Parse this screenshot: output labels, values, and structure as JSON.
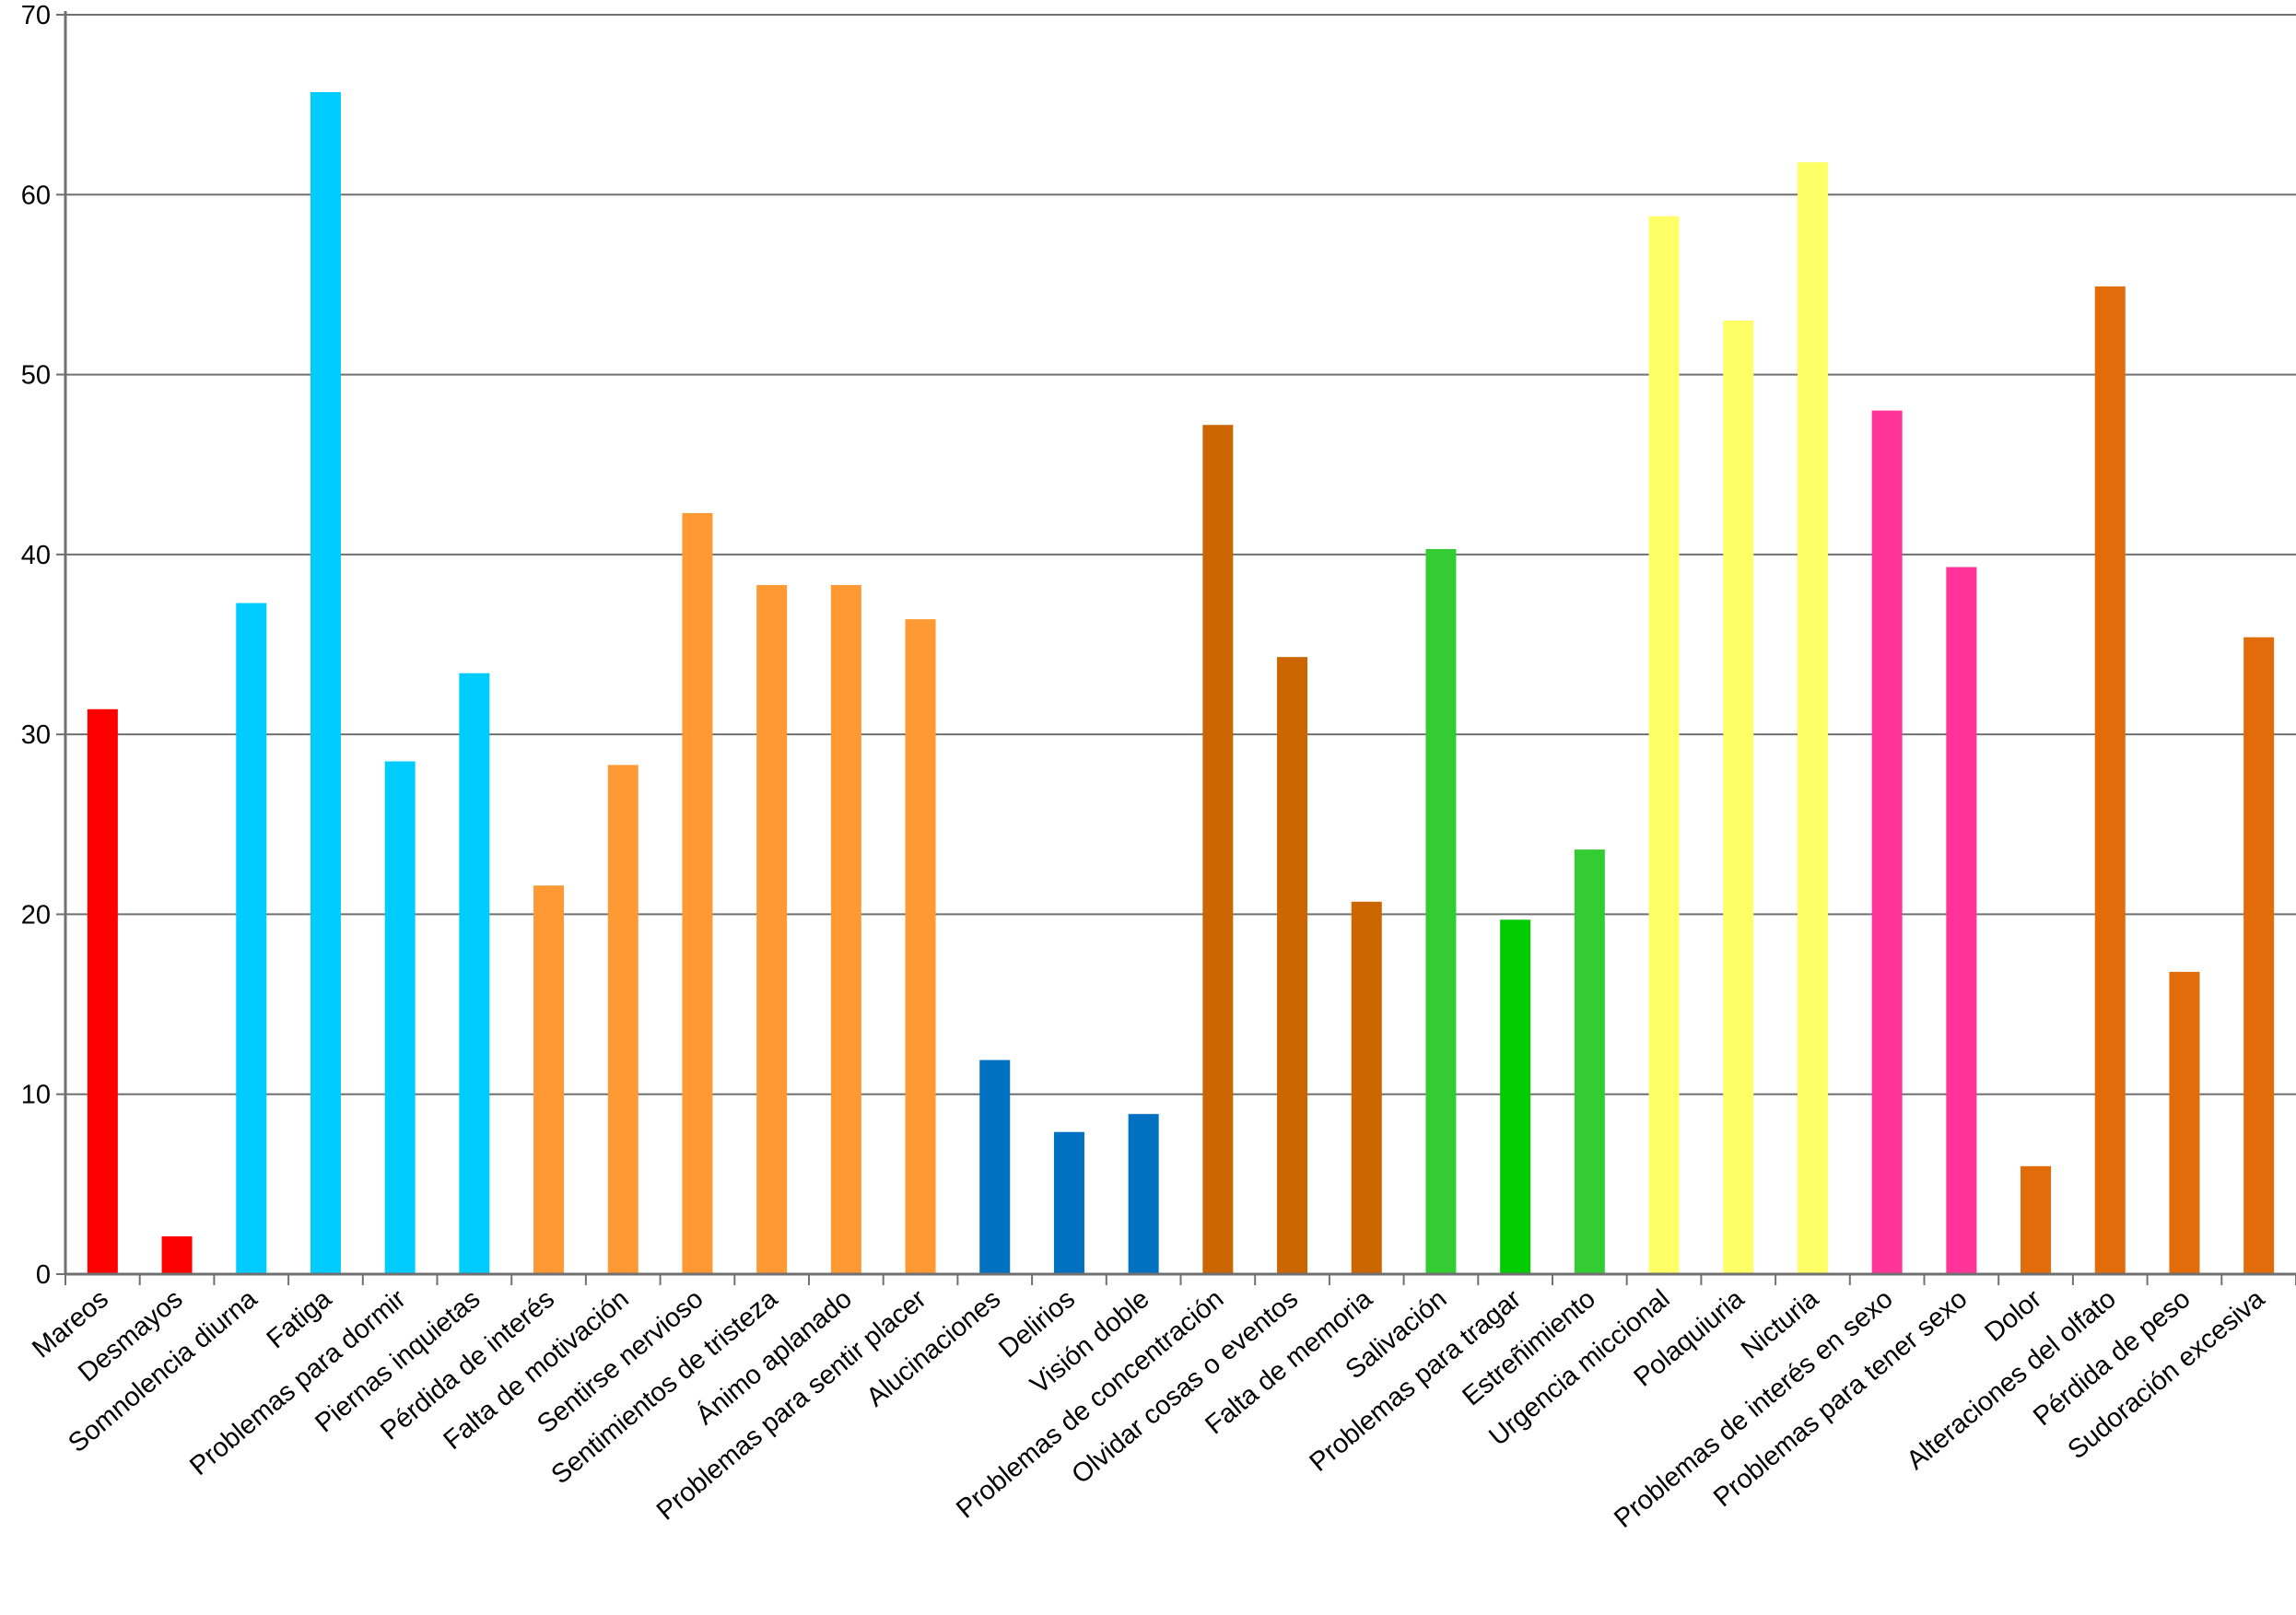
{
  "chart_data": {
    "type": "bar",
    "title": "",
    "xlabel": "",
    "ylabel": "",
    "ylim": [
      0,
      70
    ],
    "yticks": [
      0,
      10,
      20,
      30,
      40,
      50,
      60,
      70
    ],
    "grid": true,
    "legend": "none",
    "categories": [
      "Mareos",
      "Desmayos",
      "Somnolencia diurna",
      "Fatiga",
      "Problemas para dormir",
      "Piernas inquietas",
      "Pérdida de interés",
      "Falta de motivación",
      "Sentirse nervioso",
      "Sentimientos de tristeza",
      "Ánimo aplanado",
      "Problemas para sentir placer",
      "Alucinaciones",
      "Delirios",
      "Visión doble",
      "Problemas de concentración",
      "Olvidar cosas o eventos",
      "Falta de memoria",
      "Salivación",
      "Problemas para tragar",
      "Estreñimiento",
      "Urgencia miccional",
      "Polaquiuria",
      "Nicturia",
      "Problemas de interés en sexo",
      "Problemas para tener sexo",
      "Dolor",
      "Alteraciones del olfato",
      "Pérdida de peso",
      "Sudoración excesiva"
    ],
    "values": [
      31.4,
      2.1,
      37.3,
      65.7,
      28.5,
      33.4,
      21.6,
      28.3,
      42.3,
      38.3,
      38.3,
      36.4,
      11.9,
      7.9,
      8.9,
      47.2,
      34.3,
      20.7,
      40.3,
      19.7,
      23.6,
      58.8,
      53.0,
      61.8,
      48.0,
      39.3,
      6.0,
      54.9,
      16.8,
      35.4
    ],
    "colors": [
      "#ff0000",
      "#ff0000",
      "#00ccff",
      "#00ccff",
      "#00ccff",
      "#00ccff",
      "#ff9933",
      "#ff9933",
      "#ff9933",
      "#ff9933",
      "#ff9933",
      "#ff9933",
      "#0070c0",
      "#0070c0",
      "#0070c0",
      "#cc6600",
      "#cc6600",
      "#cc6600",
      "#33cc33",
      "#00cc00",
      "#33cc33",
      "#ffff66",
      "#ffff66",
      "#ffff66",
      "#ff3399",
      "#ff3399",
      "#e36c0a",
      "#e36c0a",
      "#e36c0a",
      "#e36c0a"
    ]
  }
}
